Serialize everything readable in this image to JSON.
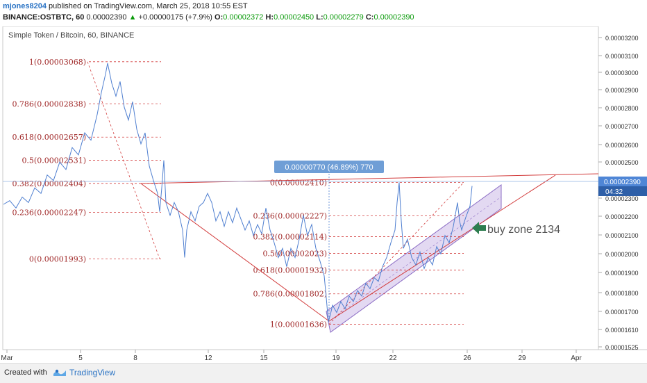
{
  "header": {
    "username": "mjones8204",
    "published_text": "published on TradingView.com, March 25, 2018 10:55 EST",
    "symbol": "BINANCE:OSTBTC, 60",
    "price": "0.00002390",
    "change": "+0.00000175 (+7.9%)",
    "ohlc": [
      {
        "label": "O:",
        "value": "0.00002372"
      },
      {
        "label": "H:",
        "value": "0.00002450"
      },
      {
        "label": "L:",
        "value": "0.00002279"
      },
      {
        "label": "C:",
        "value": "0.00002390"
      }
    ]
  },
  "chart_data": {
    "type": "line",
    "title": "Simple Token / Bitcoin, 60, BINANCE",
    "xlabel": "",
    "ylabel": "",
    "x_ticks": [
      "Mar",
      "5",
      "8",
      "12",
      "15",
      "19",
      "22",
      "26",
      "29",
      "Apr"
    ],
    "y_ticks": [
      "0.00003200",
      "0.00003100",
      "0.00003000",
      "0.00002900",
      "0.00002800",
      "0.00002700",
      "0.00002600",
      "0.00002500",
      "0.00002400",
      "0.00002300",
      "0.00002200",
      "0.00002100",
      "0.00002000",
      "0.00001900",
      "0.00001800",
      "0.00001700",
      "0.00001610",
      "0.00001525"
    ],
    "ylim": [
      1.5e-05,
      3.26e-05
    ],
    "grid": false,
    "current_price_label": "0.00002390",
    "countdown_label": "04:32",
    "fib_left": [
      {
        "label": "1(0.00003068)",
        "value": 3.068e-05
      },
      {
        "label": "0.786(0.00002838)",
        "value": 2.838e-05
      },
      {
        "label": "0.618(0.00002657)",
        "value": 2.657e-05
      },
      {
        "label": "0.5(0.00002531)",
        "value": 2.531e-05
      },
      {
        "label": "0.382(0.00002404)",
        "value": 2.404e-05
      },
      {
        "label": "0.236(0.00002247)",
        "value": 2.247e-05
      },
      {
        "label": "0(0.00001993)",
        "value": 1.993e-05
      }
    ],
    "fib_right": [
      {
        "label": "0(0.00002410)",
        "value": 2.41e-05
      },
      {
        "label": "0.236(0.00002227)",
        "value": 2.227e-05
      },
      {
        "label": "0.382(0.00002114)",
        "value": 2.114e-05
      },
      {
        "label": "0.5(0.00002023)",
        "value": 2.023e-05
      },
      {
        "label": "0.618(0.00001932)",
        "value": 1.932e-05
      },
      {
        "label": "0.786(0.00001802)",
        "value": 1.802e-05
      },
      {
        "label": "1(0.00001636)",
        "value": 1.636e-05
      }
    ],
    "measure_label": "0.00000770 (46.89%) 770",
    "annotation": "buy zone 2134",
    "series": [
      {
        "values": [
          [
            0,
            2.29e-05
          ],
          [
            3,
            2.31e-05
          ],
          [
            6,
            2.27e-05
          ],
          [
            9,
            2.33e-05
          ],
          [
            12,
            2.3e-05
          ],
          [
            15,
            2.38e-05
          ],
          [
            18,
            2.35e-05
          ],
          [
            21,
            2.45e-05
          ],
          [
            24,
            2.42e-05
          ],
          [
            27,
            2.52e-05
          ],
          [
            30,
            2.48e-05
          ],
          [
            33,
            2.6e-05
          ],
          [
            36,
            2.56e-05
          ],
          [
            39,
            2.68e-05
          ],
          [
            42,
            2.64e-05
          ],
          [
            45,
            2.78e-05
          ],
          [
            47,
            2.9e-05
          ],
          [
            49,
            3e-05
          ],
          [
            50,
            3.06e-05
          ],
          [
            52,
            2.95e-05
          ],
          [
            54,
            2.88e-05
          ],
          [
            56,
            2.96e-05
          ],
          [
            58,
            2.82e-05
          ],
          [
            60,
            2.75e-05
          ],
          [
            62,
            2.85e-05
          ],
          [
            64,
            2.7e-05
          ],
          [
            66,
            2.62e-05
          ],
          [
            68,
            2.68e-05
          ],
          [
            70,
            2.5e-05
          ],
          [
            72,
            2.42e-05
          ],
          [
            74,
            2.35e-05
          ],
          [
            75,
            2.25e-05
          ],
          [
            76,
            2.38e-05
          ],
          [
            77,
            2.53e-05
          ],
          [
            78,
            2.3e-05
          ],
          [
            80,
            2.23e-05
          ],
          [
            82,
            2.3e-05
          ],
          [
            84,
            2.25e-05
          ],
          [
            86,
            2.15e-05
          ],
          [
            87,
            2e-05
          ],
          [
            88,
            2.15e-05
          ],
          [
            90,
            2.25e-05
          ],
          [
            92,
            2.2e-05
          ],
          [
            94,
            2.28e-05
          ],
          [
            96,
            2.3e-05
          ],
          [
            98,
            2.35e-05
          ],
          [
            100,
            2.3e-05
          ],
          [
            102,
            2.2e-05
          ],
          [
            104,
            2.25e-05
          ],
          [
            106,
            2.17e-05
          ],
          [
            108,
            2.25e-05
          ],
          [
            110,
            2.19e-05
          ],
          [
            112,
            2.27e-05
          ],
          [
            114,
            2.21e-05
          ],
          [
            116,
            2.15e-05
          ],
          [
            118,
            2.2e-05
          ],
          [
            120,
            2.12e-05
          ],
          [
            122,
            2.18e-05
          ],
          [
            124,
            2.13e-05
          ],
          [
            126,
            2.27e-05
          ],
          [
            128,
            2.15e-05
          ],
          [
            130,
            2.08e-05
          ],
          [
            132,
            2e-05
          ],
          [
            134,
            2.05e-05
          ],
          [
            136,
            1.95e-05
          ],
          [
            138,
            2.05e-05
          ],
          [
            140,
            2e-05
          ],
          [
            142,
            2.1e-05
          ],
          [
            144,
            2.23e-05
          ],
          [
            146,
            2.12e-05
          ],
          [
            148,
            2.18e-05
          ],
          [
            150,
            2.05e-05
          ],
          [
            152,
            1.98e-05
          ],
          [
            154,
            1.9e-05
          ],
          [
            155,
            1.78e-05
          ],
          [
            156,
            1.65e-05
          ],
          [
            157,
            1.69e-05
          ],
          [
            158,
            1.74e-05
          ],
          [
            160,
            1.7e-05
          ],
          [
            162,
            1.76e-05
          ],
          [
            164,
            1.72e-05
          ],
          [
            166,
            1.79e-05
          ],
          [
            168,
            1.76e-05
          ],
          [
            170,
            1.82e-05
          ],
          [
            172,
            1.79e-05
          ],
          [
            174,
            1.86e-05
          ],
          [
            176,
            1.83e-05
          ],
          [
            178,
            1.89e-05
          ],
          [
            180,
            1.87e-05
          ],
          [
            182,
            1.95e-05
          ],
          [
            184,
            2e-05
          ],
          [
            186,
            2.08e-05
          ],
          [
            188,
            2.15e-05
          ],
          [
            189,
            2.3e-05
          ],
          [
            190,
            2.41e-05
          ],
          [
            191,
            2.2e-05
          ],
          [
            192,
            2.05e-05
          ],
          [
            194,
            2.1e-05
          ],
          [
            196,
            2e-05
          ],
          [
            198,
            1.96e-05
          ],
          [
            200,
            2.03e-05
          ],
          [
            202,
            1.94e-05
          ],
          [
            204,
            2e-05
          ],
          [
            206,
            1.96e-05
          ],
          [
            208,
            2.06e-05
          ],
          [
            210,
            2.02e-05
          ],
          [
            212,
            2.12e-05
          ],
          [
            214,
            2.08e-05
          ],
          [
            216,
            2.17e-05
          ],
          [
            218,
            2.3e-05
          ],
          [
            219,
            2.2e-05
          ],
          [
            220,
            2.15e-05
          ],
          [
            222,
            2.22e-05
          ],
          [
            224,
            2.28e-05
          ],
          [
            225,
            2.39e-05
          ]
        ]
      }
    ]
  },
  "footer": {
    "created_with": "Created with",
    "brand": "TradingView"
  }
}
